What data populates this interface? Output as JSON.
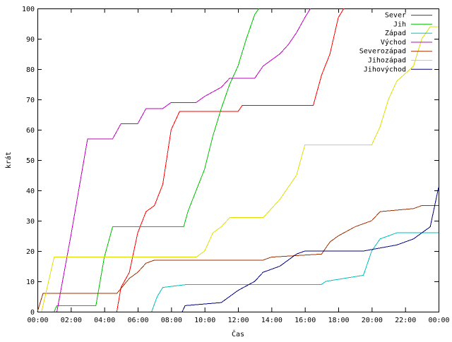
{
  "chart_data": {
    "type": "line",
    "title": "",
    "xlabel": "Čas",
    "ylabel": "krát",
    "xlim": [
      "00:00",
      "24:00"
    ],
    "ylim": [
      0,
      100
    ],
    "grid": false,
    "legend_position": "top-right",
    "x_ticks": [
      "00:00",
      "02:00",
      "04:00",
      "06:00",
      "08:00",
      "10:00",
      "12:00",
      "14:00",
      "16:00",
      "18:00",
      "20:00",
      "22:00",
      "00:00"
    ],
    "y_ticks": [
      "0",
      "10",
      "20",
      "30",
      "40",
      "50",
      "60",
      "70",
      "80",
      "90",
      "100"
    ],
    "series": [
      {
        "name": "Sever",
        "color": "#ff0000",
        "points": [
          [
            "04:45",
            0
          ],
          [
            "05:00",
            8
          ],
          [
            "05:30",
            13
          ],
          [
            "06:00",
            26
          ],
          [
            "06:30",
            33
          ],
          [
            "07:00",
            35
          ],
          [
            "07:30",
            42
          ],
          [
            "08:00",
            60
          ],
          [
            "08:30",
            66
          ],
          [
            "12:00",
            66
          ],
          [
            "12:15",
            68
          ],
          [
            "16:30",
            68
          ],
          [
            "17:00",
            78
          ],
          [
            "17:30",
            85
          ],
          [
            "18:00",
            97
          ],
          [
            "18:20",
            100
          ]
        ]
      },
      {
        "name": "Jih",
        "color": "#00c000",
        "points": [
          [
            "01:00",
            0
          ],
          [
            "01:10",
            2
          ],
          [
            "03:30",
            2
          ],
          [
            "04:00",
            18
          ],
          [
            "04:30",
            28
          ],
          [
            "08:45",
            28
          ],
          [
            "09:00",
            33
          ],
          [
            "09:30",
            40
          ],
          [
            "10:00",
            47
          ],
          [
            "10:30",
            58
          ],
          [
            "11:00",
            67
          ],
          [
            "11:30",
            75
          ],
          [
            "12:00",
            81
          ],
          [
            "12:30",
            90
          ],
          [
            "13:00",
            98
          ],
          [
            "13:15",
            100
          ]
        ]
      },
      {
        "name": "Západ",
        "color": "#00c0c0",
        "points": [
          [
            "06:50",
            0
          ],
          [
            "07:10",
            5
          ],
          [
            "07:30",
            8
          ],
          [
            "09:00",
            9
          ],
          [
            "17:00",
            9
          ],
          [
            "17:15",
            10
          ],
          [
            "19:30",
            12
          ],
          [
            "20:00",
            20
          ],
          [
            "20:30",
            24
          ],
          [
            "21:30",
            26
          ],
          [
            "24:00",
            26
          ]
        ]
      },
      {
        "name": "Východ",
        "color": "#c000c0",
        "points": [
          [
            "01:10",
            0
          ],
          [
            "02:00",
            25
          ],
          [
            "03:00",
            57
          ],
          [
            "04:30",
            57
          ],
          [
            "05:00",
            62
          ],
          [
            "06:00",
            62
          ],
          [
            "06:30",
            67
          ],
          [
            "07:30",
            67
          ],
          [
            "08:00",
            69
          ],
          [
            "09:30",
            69
          ],
          [
            "10:00",
            71
          ],
          [
            "11:00",
            74
          ],
          [
            "11:30",
            77
          ],
          [
            "13:00",
            77
          ],
          [
            "13:30",
            81
          ],
          [
            "14:30",
            85
          ],
          [
            "15:00",
            88
          ],
          [
            "15:30",
            92
          ],
          [
            "16:00",
            97
          ],
          [
            "16:20",
            100
          ]
        ]
      },
      {
        "name": "Severozápad",
        "color": "#a03000",
        "points": [
          [
            "00:00",
            0
          ],
          [
            "00:20",
            6
          ],
          [
            "04:45",
            6
          ],
          [
            "05:30",
            11
          ],
          [
            "06:00",
            13
          ],
          [
            "06:30",
            16
          ],
          [
            "07:00",
            17
          ],
          [
            "13:30",
            17
          ],
          [
            "14:00",
            18
          ],
          [
            "17:00",
            19
          ],
          [
            "17:30",
            23
          ],
          [
            "18:00",
            25
          ],
          [
            "19:00",
            28
          ],
          [
            "20:00",
            30
          ],
          [
            "20:30",
            33
          ],
          [
            "22:30",
            34
          ],
          [
            "23:00",
            35
          ],
          [
            "24:00",
            35
          ]
        ]
      },
      {
        "name": "Jihozápad",
        "color": "#e0e000",
        "points": [
          [
            "00:15",
            0
          ],
          [
            "01:00",
            18
          ],
          [
            "09:30",
            18
          ],
          [
            "10:00",
            20
          ],
          [
            "10:30",
            26
          ],
          [
            "11:00",
            28
          ],
          [
            "11:30",
            31
          ],
          [
            "13:30",
            31
          ],
          [
            "14:00",
            34
          ],
          [
            "14:30",
            37
          ],
          [
            "15:00",
            41
          ],
          [
            "15:30",
            45
          ],
          [
            "16:00",
            55
          ],
          [
            "20:00",
            55
          ],
          [
            "20:30",
            61
          ],
          [
            "21:00",
            70
          ],
          [
            "21:30",
            76
          ],
          [
            "22:30",
            81
          ],
          [
            "23:00",
            90
          ],
          [
            "23:30",
            94
          ],
          [
            "24:00",
            94
          ]
        ]
      },
      {
        "name": "Jihovýchod",
        "color": "#000080",
        "points": [
          [
            "08:40",
            0
          ],
          [
            "08:50",
            2
          ],
          [
            "11:00",
            3
          ],
          [
            "12:00",
            7
          ],
          [
            "13:00",
            10
          ],
          [
            "13:30",
            13
          ],
          [
            "14:30",
            15
          ],
          [
            "15:30",
            19
          ],
          [
            "16:00",
            20
          ],
          [
            "19:30",
            20
          ],
          [
            "20:30",
            21
          ],
          [
            "21:30",
            22
          ],
          [
            "22:30",
            24
          ],
          [
            "23:30",
            28
          ],
          [
            "24:00",
            41
          ]
        ]
      }
    ]
  }
}
